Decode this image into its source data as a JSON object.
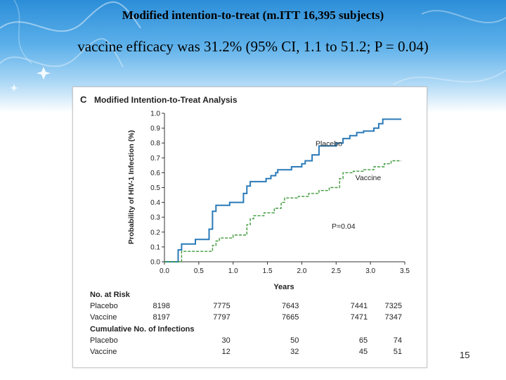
{
  "slide": {
    "title": "Modified intention-to-treat (m.ITT 16,395 subjects)",
    "subtitle": "vaccine efficacy was 31.2% (95% CI, 1.1 to 51.2; P = 0.04)",
    "page_number": "15",
    "banner_color": "#3a9be0"
  },
  "chart_data": {
    "type": "line",
    "panel_letter": "C",
    "title": "Modified Intention-to-Treat Analysis",
    "xlabel": "Years",
    "ylabel": "Probability of HIV-1 Infection (%)",
    "xlim": [
      0,
      3.5
    ],
    "ylim": [
      0,
      1.0
    ],
    "x_ticks": [
      "0.0",
      "0.5",
      "1.0",
      "1.5",
      "2.0",
      "2.5",
      "3.0",
      "3.5"
    ],
    "y_ticks": [
      "0.0",
      "0.1",
      "0.2",
      "0.3",
      "0.4",
      "0.5",
      "0.6",
      "0.7",
      "0.8",
      "0.9",
      "1.0"
    ],
    "annotation": "P=0.04",
    "series": [
      {
        "name": "Placebo",
        "color": "#2a7ab8",
        "dash": "solid",
        "points": [
          [
            0,
            0
          ],
          [
            0.2,
            0
          ],
          [
            0.2,
            0.08
          ],
          [
            0.25,
            0.08
          ],
          [
            0.25,
            0.12
          ],
          [
            0.45,
            0.12
          ],
          [
            0.45,
            0.15
          ],
          [
            0.65,
            0.15
          ],
          [
            0.65,
            0.22
          ],
          [
            0.7,
            0.22
          ],
          [
            0.7,
            0.34
          ],
          [
            0.75,
            0.34
          ],
          [
            0.75,
            0.38
          ],
          [
            0.95,
            0.38
          ],
          [
            0.95,
            0.4
          ],
          [
            1.15,
            0.4
          ],
          [
            1.15,
            0.46
          ],
          [
            1.2,
            0.46
          ],
          [
            1.2,
            0.51
          ],
          [
            1.25,
            0.51
          ],
          [
            1.25,
            0.54
          ],
          [
            1.48,
            0.54
          ],
          [
            1.48,
            0.56
          ],
          [
            1.55,
            0.56
          ],
          [
            1.55,
            0.58
          ],
          [
            1.62,
            0.58
          ],
          [
            1.62,
            0.6
          ],
          [
            1.65,
            0.6
          ],
          [
            1.65,
            0.62
          ],
          [
            1.85,
            0.62
          ],
          [
            1.85,
            0.64
          ],
          [
            2.0,
            0.64
          ],
          [
            2.0,
            0.66
          ],
          [
            2.05,
            0.66
          ],
          [
            2.05,
            0.68
          ],
          [
            2.15,
            0.68
          ],
          [
            2.15,
            0.72
          ],
          [
            2.25,
            0.72
          ],
          [
            2.25,
            0.78
          ],
          [
            2.5,
            0.78
          ],
          [
            2.5,
            0.8
          ],
          [
            2.6,
            0.8
          ],
          [
            2.6,
            0.83
          ],
          [
            2.7,
            0.83
          ],
          [
            2.7,
            0.85
          ],
          [
            2.8,
            0.85
          ],
          [
            2.8,
            0.87
          ],
          [
            2.9,
            0.87
          ],
          [
            2.9,
            0.88
          ],
          [
            3.05,
            0.88
          ],
          [
            3.05,
            0.9
          ],
          [
            3.12,
            0.9
          ],
          [
            3.12,
            0.93
          ],
          [
            3.18,
            0.93
          ],
          [
            3.18,
            0.96
          ],
          [
            3.45,
            0.96
          ]
        ]
      },
      {
        "name": "Vaccine",
        "color": "#3e9a3a",
        "dash": "dashed",
        "points": [
          [
            0,
            0
          ],
          [
            0.25,
            0
          ],
          [
            0.25,
            0.07
          ],
          [
            0.7,
            0.07
          ],
          [
            0.7,
            0.11
          ],
          [
            0.75,
            0.11
          ],
          [
            0.75,
            0.14
          ],
          [
            0.8,
            0.14
          ],
          [
            0.8,
            0.16
          ],
          [
            1.0,
            0.16
          ],
          [
            1.0,
            0.18
          ],
          [
            1.2,
            0.18
          ],
          [
            1.2,
            0.25
          ],
          [
            1.25,
            0.25
          ],
          [
            1.25,
            0.29
          ],
          [
            1.3,
            0.29
          ],
          [
            1.3,
            0.31
          ],
          [
            1.45,
            0.31
          ],
          [
            1.45,
            0.33
          ],
          [
            1.6,
            0.33
          ],
          [
            1.6,
            0.36
          ],
          [
            1.7,
            0.36
          ],
          [
            1.7,
            0.4
          ],
          [
            1.75,
            0.4
          ],
          [
            1.75,
            0.43
          ],
          [
            1.95,
            0.43
          ],
          [
            1.95,
            0.44
          ],
          [
            2.1,
            0.44
          ],
          [
            2.1,
            0.46
          ],
          [
            2.25,
            0.46
          ],
          [
            2.25,
            0.48
          ],
          [
            2.4,
            0.48
          ],
          [
            2.4,
            0.5
          ],
          [
            2.55,
            0.5
          ],
          [
            2.55,
            0.56
          ],
          [
            2.6,
            0.56
          ],
          [
            2.6,
            0.6
          ],
          [
            2.75,
            0.6
          ],
          [
            2.75,
            0.61
          ],
          [
            2.9,
            0.61
          ],
          [
            2.9,
            0.62
          ],
          [
            3.05,
            0.62
          ],
          [
            3.05,
            0.64
          ],
          [
            3.2,
            0.64
          ],
          [
            3.2,
            0.66
          ],
          [
            3.3,
            0.66
          ],
          [
            3.3,
            0.68
          ],
          [
            3.45,
            0.68
          ]
        ]
      }
    ],
    "risk_table": {
      "title": "No. at Risk",
      "time_points": [
        0,
        1.0,
        2.0,
        3.0,
        3.5
      ],
      "rows": [
        {
          "label": "Placebo",
          "values": [
            "8198",
            "7775",
            "7643",
            "7441",
            "7325"
          ]
        },
        {
          "label": "Vaccine",
          "values": [
            "8197",
            "7797",
            "7665",
            "7471",
            "7347"
          ]
        }
      ]
    },
    "infection_table": {
      "title": "Cumulative No. of Infections",
      "time_points": [
        1.0,
        2.0,
        3.0,
        3.5
      ],
      "rows": [
        {
          "label": "Placebo",
          "values": [
            "30",
            "50",
            "65",
            "74"
          ]
        },
        {
          "label": "Vaccine",
          "values": [
            "12",
            "32",
            "45",
            "51"
          ]
        }
      ]
    }
  }
}
